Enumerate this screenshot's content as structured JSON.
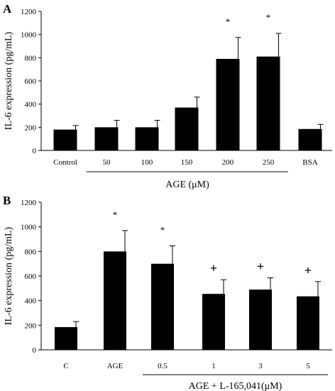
{
  "chart_data": [
    {
      "type": "bar",
      "panel_label": "A",
      "ylabel": "IL-6 expression (pg/mL)",
      "ylim": [
        0,
        1200
      ],
      "yticks": [
        "0",
        "200",
        "400",
        "600",
        "800",
        "1000",
        "1200"
      ],
      "categories": [
        "Control",
        "50",
        "100",
        "150",
        "200",
        "250",
        "BSA"
      ],
      "values": [
        180,
        200,
        200,
        370,
        790,
        810,
        185
      ],
      "errors": [
        35,
        60,
        60,
        90,
        185,
        200,
        40
      ],
      "annotations": [
        "",
        "",
        "",
        "",
        "*",
        "*",
        ""
      ],
      "group_label": "AGE (μM)",
      "group_span": [
        1,
        5
      ]
    },
    {
      "type": "bar",
      "panel_label": "B",
      "ylabel": "IL-6 expression (pg/mL)",
      "ylim": [
        0,
        1200
      ],
      "yticks": [
        "0",
        "200",
        "400",
        "600",
        "800",
        "1000",
        "1200"
      ],
      "categories": [
        "C",
        "AGE",
        "0.5",
        "1",
        "3",
        "5"
      ],
      "values": [
        185,
        800,
        700,
        455,
        490,
        435
      ],
      "errors": [
        45,
        170,
        145,
        115,
        95,
        120
      ],
      "annotations": [
        "",
        "*",
        "*",
        "+",
        "+",
        "+"
      ],
      "group_label": "AGE + L-165,041(μM)",
      "group_span": [
        2,
        5
      ]
    }
  ]
}
